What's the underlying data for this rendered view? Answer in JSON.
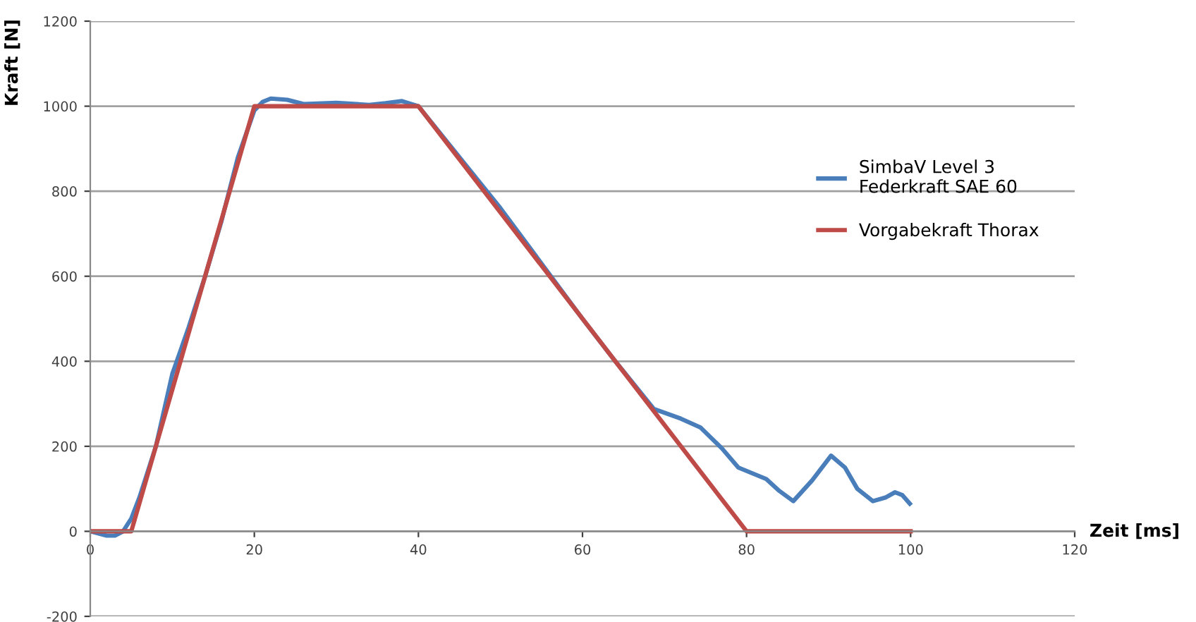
{
  "chart_data": {
    "type": "line",
    "xlabel": "Zeit [ms]",
    "ylabel": "Kraft [N]",
    "xlim": [
      0,
      120
    ],
    "xticks": [
      0,
      20,
      40,
      60,
      80,
      100,
      120
    ],
    "ylim": [
      -200,
      1200
    ],
    "yticks": [
      -200,
      0,
      200,
      400,
      600,
      800,
      1000,
      1200
    ],
    "grid": "y",
    "legend": "right",
    "marker": "none",
    "line_style": "solid",
    "series": [
      {
        "name": "SimbaV Level 3\nFederkraft SAE 60",
        "color": "#4a7ebb",
        "x": [
          0,
          2,
          3,
          4,
          5,
          6,
          8,
          10,
          12,
          14,
          16,
          18,
          20,
          21,
          22,
          24,
          26,
          30,
          34,
          36,
          38,
          40,
          50,
          60,
          64,
          68.7,
          72,
          74.4,
          77,
          79,
          82.4,
          84,
          85.7,
          88,
          90.3,
          92,
          93.5,
          95.4,
          97,
          98.1,
          99,
          99.9
        ],
        "values": [
          0,
          -10,
          -10,
          0,
          30,
          80,
          200,
          370,
          480,
          600,
          730,
          880,
          990,
          1010,
          1018,
          1015,
          1005,
          1008,
          1003,
          1007,
          1012,
          1000,
          760,
          500,
          400,
          288,
          265,
          244,
          195,
          150,
          123,
          95,
          71,
          120,
          178,
          150,
          100,
          71,
          80,
          92,
          85,
          65
        ]
      },
      {
        "name": "Vorgabekraft Thorax",
        "color": "#be4b48",
        "x": [
          0,
          5,
          20,
          40,
          80,
          100
        ],
        "values": [
          0,
          0,
          1000,
          1000,
          0,
          0
        ]
      }
    ]
  }
}
